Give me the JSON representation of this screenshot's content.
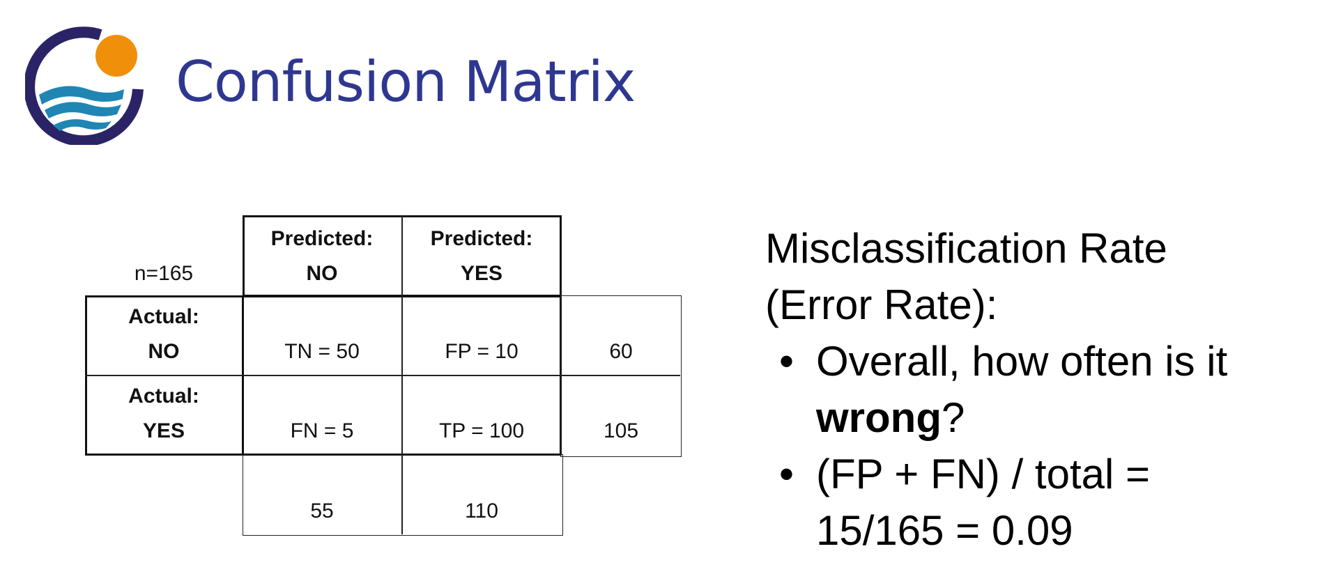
{
  "slide": {
    "title": "Confusion Matrix",
    "colors": {
      "title": "#2e3790",
      "logo_ring": "#2a2466",
      "logo_sun": "#f0900a",
      "logo_waves": "#1f86b4"
    }
  },
  "matrix": {
    "n_label": "n=165",
    "col_headers": [
      {
        "line1": "Predicted:",
        "line2": "NO"
      },
      {
        "line1": "Predicted:",
        "line2": "YES"
      }
    ],
    "rows": [
      {
        "line1": "Actual:",
        "line2": "NO",
        "cells": [
          "TN = 50",
          "FP = 10"
        ],
        "total": "60"
      },
      {
        "line1": "Actual:",
        "line2": "YES",
        "cells": [
          "FN = 5",
          "TP = 100"
        ],
        "total": "105"
      }
    ],
    "col_totals": [
      "55",
      "110"
    ]
  },
  "explanation": {
    "heading_line1": "Misclassification Rate",
    "heading_line2": "(Error Rate):",
    "bullets": [
      {
        "pre": "Overall, how often is it",
        "bold": "wrong",
        "post": "?"
      },
      {
        "line1": "(FP + FN) / total =",
        "line2": "15/165 = 0.09"
      }
    ]
  }
}
